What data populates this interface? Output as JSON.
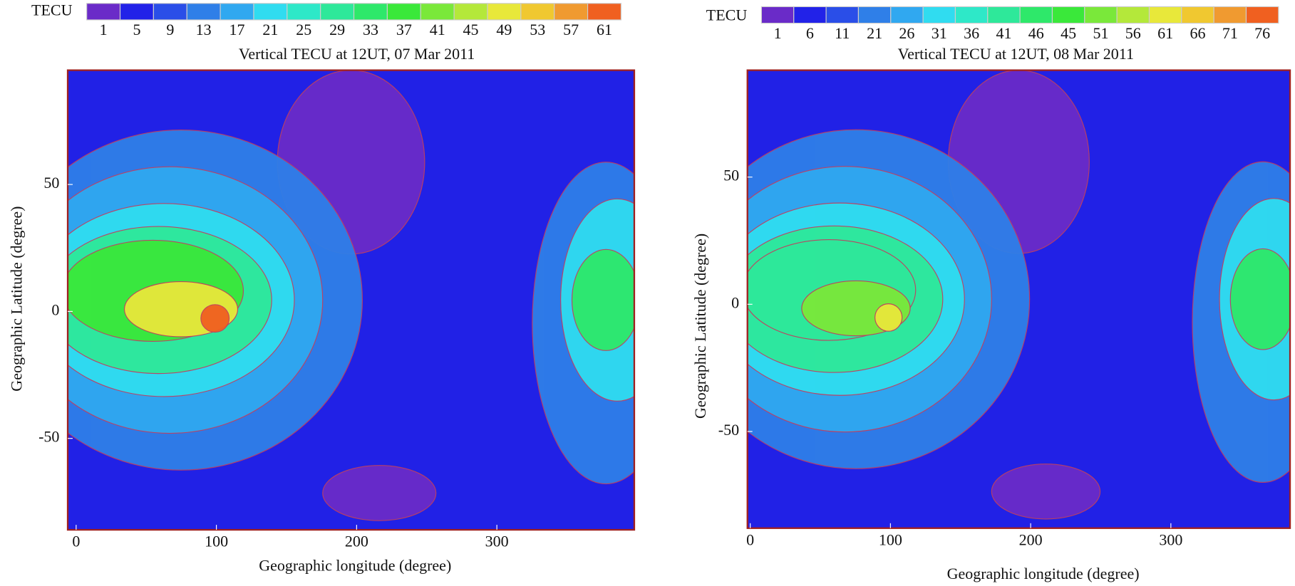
{
  "chart_data": [
    {
      "type": "contour",
      "title": "Vertical TECU at 12UT, 07 Mar 2011",
      "colorbar_label": "TECU",
      "levels": [
        1,
        5,
        9,
        13,
        17,
        21,
        25,
        29,
        33,
        37,
        41,
        45,
        49,
        53,
        57,
        61
      ],
      "colors": [
        "#6a2bc8",
        "#2222e8",
        "#2a4ee8",
        "#2f7fe8",
        "#30a8f0",
        "#30dcf0",
        "#2ee8c8",
        "#2ee89a",
        "#2ee86a",
        "#3ae83a",
        "#7ae83a",
        "#b4e83a",
        "#e8e83a",
        "#f0c830",
        "#f09a30",
        "#f06020"
      ],
      "background": "#2121e6",
      "xlabel": "Geographic longitude (degree)",
      "ylabel": "Geographic Latitude (degree)",
      "xlim": [
        -6,
        398
      ],
      "xticks": [
        0,
        100,
        200,
        300
      ],
      "ylim": [
        -86,
        95
      ],
      "yticks": [
        -50,
        0,
        50
      ]
    },
    {
      "type": "contour",
      "title": "Vertical TECU at 12UT, 08 Mar 2011",
      "colorbar_label": "TECU",
      "levels": [
        1,
        6,
        11,
        21,
        26,
        31,
        36,
        41,
        46,
        45,
        51,
        56,
        61,
        66,
        71,
        76
      ],
      "colors": [
        "#6a2bc8",
        "#2222e8",
        "#2a4ee8",
        "#2f7fe8",
        "#30a8f0",
        "#30dcf0",
        "#2ee8c8",
        "#2ee89a",
        "#2ee86a",
        "#3ae83a",
        "#7ae83a",
        "#b4e83a",
        "#e8e83a",
        "#f0c830",
        "#f09a30",
        "#f06020"
      ],
      "background": "#2121e6",
      "xlabel": "Geographic longitude (degree)",
      "ylabel": "Geographic Latitude (degree)",
      "xlim": [
        -2,
        385
      ],
      "xticks": [
        0,
        100,
        200,
        300
      ],
      "ylim": [
        -88,
        92
      ],
      "yticks": [
        -50,
        0,
        50
      ]
    }
  ]
}
